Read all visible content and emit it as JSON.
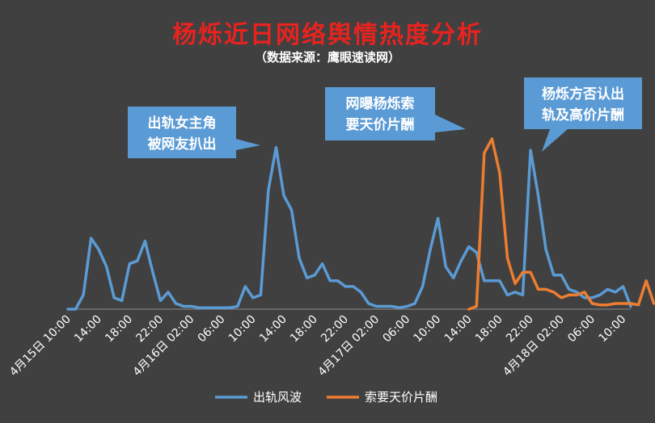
{
  "chart_data": {
    "type": "line",
    "title": "杨烁近日网络舆情热度分析",
    "subtitle": "（数据来源：鹰眼速读网）",
    "xlabel": "",
    "ylabel": "",
    "grid": false,
    "legend_position": "bottom",
    "x_tick_labels": [
      "4月15日 10:00",
      "14:00",
      "18:00",
      "22:00",
      "4月16日 02:00",
      "06:00",
      "10:00",
      "14:00",
      "18:00",
      "22:00",
      "4月17日 02:00",
      "06:00",
      "10:00",
      "14:00",
      "18:00",
      "22:00",
      "4月18日 02:00",
      "06:00",
      "10:00"
    ],
    "series": [
      {
        "name": "出轨风波",
        "color": "#5b9bd5",
        "values": [
          0,
          0,
          5,
          25,
          21,
          15,
          4,
          3,
          16,
          17,
          24,
          13,
          3,
          6,
          2,
          1,
          1,
          0.5,
          0.5,
          0.5,
          0.5,
          0.5,
          1,
          8,
          4,
          5,
          42,
          57,
          40,
          35,
          18,
          11,
          12,
          16,
          10,
          10,
          8,
          8,
          6,
          2,
          1,
          1,
          1,
          0.5,
          1,
          2,
          8,
          21,
          32,
          15,
          11,
          17,
          22,
          20,
          10,
          10,
          10,
          5,
          6,
          5,
          56,
          40,
          21,
          12,
          12,
          7,
          6,
          4,
          4,
          5,
          7,
          6,
          8,
          1
        ]
      },
      {
        "name": "索要天价片酬",
        "color": "#ed7d31",
        "start_index": 52,
        "values": [
          0,
          1,
          55,
          60,
          48,
          18,
          9,
          13,
          13,
          7,
          7,
          6,
          4,
          5,
          5,
          6,
          2,
          1.5,
          1.5,
          2,
          2,
          2,
          1.5,
          10,
          2
        ]
      }
    ],
    "annotations": [
      {
        "lines": [
          "出轨女主角",
          "被网友扒出"
        ]
      },
      {
        "lines": [
          "网曝杨烁索",
          "要天价片酬"
        ]
      },
      {
        "lines": [
          "杨烁方否认出",
          "轨及高价片酬"
        ]
      }
    ]
  }
}
